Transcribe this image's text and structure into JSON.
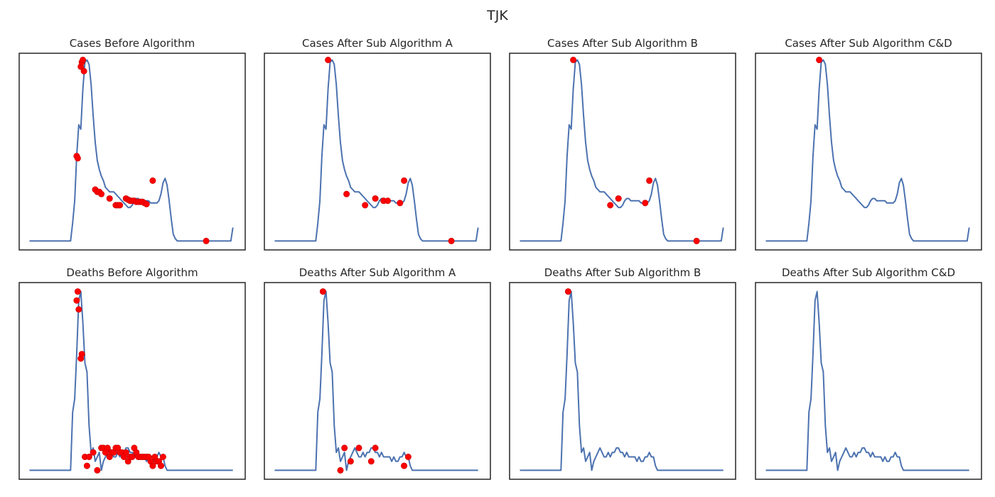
{
  "figure": {
    "suptitle": "TJK",
    "colors": {
      "line": "#4c72b0",
      "marker": "#ff0000",
      "frame": "#262626"
    }
  },
  "chart_data": [
    {
      "type": "line",
      "title": "Cases Before Algorithm",
      "xlabel": "",
      "ylabel": "",
      "xlim": [
        -5,
        105
      ],
      "ylim": [
        -4,
        84
      ],
      "grid": false,
      "legend": "none",
      "series": [
        {
          "values": [
            0,
            0,
            0,
            0,
            0,
            0,
            0,
            0,
            0,
            0,
            0,
            0,
            0,
            0,
            0,
            0,
            0,
            0,
            0,
            0,
            0,
            8,
            18,
            38,
            52,
            50,
            68,
            80,
            81,
            79,
            70,
            56,
            44,
            36,
            32,
            29,
            27,
            24,
            23,
            22,
            22,
            22,
            21,
            20,
            19,
            18,
            17,
            16,
            15,
            15,
            16,
            18,
            19,
            19,
            18,
            18,
            18,
            18,
            18,
            17,
            17,
            17,
            17,
            18,
            21,
            26,
            28,
            25,
            18,
            10,
            3,
            1,
            0,
            0,
            0,
            0,
            0,
            0,
            0,
            0,
            0,
            0,
            0,
            0,
            0,
            0,
            0,
            0,
            0,
            0,
            0,
            0,
            0,
            0,
            0,
            0,
            0,
            0,
            0,
            6
          ]
        }
      ],
      "highlight_points": [
        [
          23,
          38
        ],
        [
          23.5,
          37
        ],
        [
          25,
          78
        ],
        [
          25.5,
          80
        ],
        [
          26,
          81
        ],
        [
          26.5,
          76
        ],
        [
          32,
          23
        ],
        [
          33,
          22
        ],
        [
          34,
          22
        ],
        [
          35,
          21
        ],
        [
          39,
          19
        ],
        [
          42,
          16
        ],
        [
          43,
          16
        ],
        [
          44,
          16
        ],
        [
          47,
          19
        ],
        [
          48,
          18.5
        ],
        [
          49,
          18
        ],
        [
          50,
          18
        ],
        [
          51,
          18
        ],
        [
          52,
          17.5
        ],
        [
          53,
          17.5
        ],
        [
          54,
          17.5
        ],
        [
          55,
          17.5
        ],
        [
          56,
          17
        ],
        [
          57,
          16.5
        ],
        [
          60,
          27
        ],
        [
          86,
          0
        ]
      ]
    },
    {
      "type": "line",
      "title": "Cases After Sub Algorithm A",
      "xlabel": "",
      "ylabel": "",
      "xlim": [
        -5,
        105
      ],
      "ylim": [
        -4,
        84
      ],
      "grid": false,
      "legend": "none",
      "series": [
        {
          "values": [
            0,
            0,
            0,
            0,
            0,
            0,
            0,
            0,
            0,
            0,
            0,
            0,
            0,
            0,
            0,
            0,
            0,
            0,
            0,
            0,
            0,
            8,
            18,
            38,
            52,
            50,
            68,
            80,
            81,
            79,
            70,
            56,
            44,
            36,
            32,
            29,
            27,
            24,
            23,
            22,
            22,
            22,
            21,
            20,
            19,
            18,
            17,
            16,
            15,
            15,
            16,
            18,
            19,
            19,
            18,
            18,
            18,
            18,
            18,
            17,
            17,
            17,
            17,
            18,
            21,
            26,
            28,
            25,
            18,
            10,
            3,
            1,
            0,
            0,
            0,
            0,
            0,
            0,
            0,
            0,
            0,
            0,
            0,
            0,
            0,
            0,
            0,
            0,
            0,
            0,
            0,
            0,
            0,
            0,
            0,
            0,
            0,
            0,
            0,
            6
          ]
        }
      ],
      "highlight_points": [
        [
          26,
          81
        ],
        [
          35,
          21
        ],
        [
          44,
          16
        ],
        [
          49,
          19
        ],
        [
          53,
          18
        ],
        [
          55,
          18
        ],
        [
          61,
          17
        ],
        [
          63,
          27
        ],
        [
          86,
          0
        ]
      ]
    },
    {
      "type": "line",
      "title": "Cases After Sub Algorithm B",
      "xlabel": "",
      "ylabel": "",
      "xlim": [
        -5,
        105
      ],
      "ylim": [
        -4,
        84
      ],
      "grid": false,
      "legend": "none",
      "series": [
        {
          "values": [
            0,
            0,
            0,
            0,
            0,
            0,
            0,
            0,
            0,
            0,
            0,
            0,
            0,
            0,
            0,
            0,
            0,
            0,
            0,
            0,
            0,
            8,
            18,
            38,
            52,
            50,
            68,
            80,
            81,
            79,
            70,
            56,
            44,
            36,
            32,
            29,
            27,
            24,
            23,
            22,
            22,
            22,
            21,
            20,
            19,
            18,
            17,
            16,
            15,
            15,
            16,
            18,
            19,
            19,
            18,
            18,
            18,
            18,
            18,
            17,
            17,
            17,
            17,
            18,
            21,
            26,
            28,
            25,
            18,
            10,
            3,
            1,
            0,
            0,
            0,
            0,
            0,
            0,
            0,
            0,
            0,
            0,
            0,
            0,
            0,
            0,
            0,
            0,
            0,
            0,
            0,
            0,
            0,
            0,
            0,
            0,
            0,
            0,
            0,
            6
          ]
        }
      ],
      "highlight_points": [
        [
          26,
          81
        ],
        [
          44,
          16
        ],
        [
          48,
          19
        ],
        [
          61,
          17
        ],
        [
          63,
          27
        ],
        [
          86,
          0
        ]
      ]
    },
    {
      "type": "line",
      "title": "Cases After Sub Algorithm C&D",
      "xlabel": "",
      "ylabel": "",
      "xlim": [
        -5,
        105
      ],
      "ylim": [
        -4,
        84
      ],
      "grid": false,
      "legend": "none",
      "series": [
        {
          "values": [
            0,
            0,
            0,
            0,
            0,
            0,
            0,
            0,
            0,
            0,
            0,
            0,
            0,
            0,
            0,
            0,
            0,
            0,
            0,
            0,
            0,
            8,
            18,
            38,
            52,
            50,
            68,
            80,
            81,
            79,
            70,
            56,
            44,
            36,
            32,
            29,
            27,
            24,
            23,
            22,
            22,
            22,
            21,
            20,
            19,
            18,
            17,
            16,
            15,
            15,
            16,
            18,
            19,
            19,
            18,
            18,
            18,
            18,
            18,
            17,
            17,
            17,
            17,
            18,
            21,
            26,
            28,
            25,
            18,
            10,
            3,
            1,
            0,
            0,
            0,
            0,
            0,
            0,
            0,
            0,
            0,
            0,
            0,
            0,
            0,
            0,
            0,
            0,
            0,
            0,
            0,
            0,
            0,
            0,
            0,
            0,
            0,
            0,
            0,
            6
          ]
        }
      ],
      "highlight_points": [
        [
          26,
          81
        ]
      ]
    },
    {
      "type": "line",
      "title": "Deaths Before Algorithm",
      "xlabel": "",
      "ylabel": "",
      "xlim": [
        -5,
        105
      ],
      "ylim": [
        -2,
        42
      ],
      "grid": false,
      "legend": "none",
      "series": [
        {
          "values": [
            0,
            0,
            0,
            0,
            0,
            0,
            0,
            0,
            0,
            0,
            0,
            0,
            0,
            0,
            0,
            0,
            0,
            0,
            0,
            0,
            0,
            13,
            16,
            26,
            38,
            40,
            33,
            24,
            22,
            10,
            4,
            5,
            2,
            3,
            4,
            0,
            2,
            3,
            4,
            5,
            4,
            3,
            3,
            4,
            3,
            4,
            4,
            5,
            5,
            4,
            4,
            3,
            4,
            3,
            3,
            3,
            3,
            2,
            3,
            2,
            2,
            3,
            3,
            4,
            3,
            3,
            1,
            0,
            0,
            0,
            0,
            0,
            0,
            0,
            0,
            0,
            0,
            0,
            0,
            0,
            0,
            0,
            0,
            0,
            0,
            0,
            0,
            0,
            0,
            0,
            0,
            0,
            0,
            0,
            0,
            0,
            0,
            0,
            0,
            0
          ]
        }
      ],
      "highlight_points": [
        [
          23,
          38
        ],
        [
          23.5,
          40
        ],
        [
          24,
          36
        ],
        [
          25,
          25
        ],
        [
          25.5,
          26
        ],
        [
          27,
          3
        ],
        [
          28,
          1
        ],
        [
          29,
          3
        ],
        [
          31,
          4
        ],
        [
          33,
          0
        ],
        [
          35,
          5
        ],
        [
          36,
          5
        ],
        [
          37,
          4
        ],
        [
          38,
          5
        ],
        [
          39,
          3
        ],
        [
          40,
          4
        ],
        [
          41,
          4
        ],
        [
          42,
          5
        ],
        [
          43,
          5
        ],
        [
          44,
          4
        ],
        [
          45,
          4
        ],
        [
          46,
          3
        ],
        [
          47,
          4
        ],
        [
          48,
          2
        ],
        [
          49,
          3
        ],
        [
          50,
          3
        ],
        [
          51,
          5
        ],
        [
          52,
          4
        ],
        [
          53,
          3
        ],
        [
          54,
          3
        ],
        [
          55,
          3
        ],
        [
          56,
          3
        ],
        [
          57,
          3
        ],
        [
          58,
          3
        ],
        [
          59,
          2
        ],
        [
          60,
          1
        ],
        [
          61,
          3
        ],
        [
          62,
          2
        ],
        [
          63,
          2
        ],
        [
          64,
          1
        ],
        [
          65,
          3
        ]
      ]
    },
    {
      "type": "line",
      "title": "Deaths After Sub Algorithm A",
      "xlabel": "",
      "ylabel": "",
      "xlim": [
        -5,
        105
      ],
      "ylim": [
        -2,
        42
      ],
      "grid": false,
      "legend": "none",
      "series": [
        {
          "values": [
            0,
            0,
            0,
            0,
            0,
            0,
            0,
            0,
            0,
            0,
            0,
            0,
            0,
            0,
            0,
            0,
            0,
            0,
            0,
            0,
            0,
            13,
            16,
            26,
            38,
            40,
            33,
            24,
            22,
            10,
            4,
            5,
            2,
            3,
            4,
            0,
            2,
            3,
            4,
            5,
            4,
            3,
            3,
            4,
            3,
            4,
            4,
            5,
            5,
            4,
            4,
            3,
            4,
            3,
            3,
            3,
            3,
            2,
            3,
            2,
            2,
            3,
            3,
            4,
            3,
            3,
            1,
            0,
            0,
            0,
            0,
            0,
            0,
            0,
            0,
            0,
            0,
            0,
            0,
            0,
            0,
            0,
            0,
            0,
            0,
            0,
            0,
            0,
            0,
            0,
            0,
            0,
            0,
            0,
            0,
            0,
            0,
            0,
            0,
            0
          ]
        }
      ],
      "highlight_points": [
        [
          23.5,
          40
        ],
        [
          32,
          0
        ],
        [
          34,
          5
        ],
        [
          37,
          2
        ],
        [
          41,
          5
        ],
        [
          47,
          2
        ],
        [
          49,
          5
        ],
        [
          63,
          1
        ],
        [
          65,
          3
        ]
      ]
    },
    {
      "type": "line",
      "title": "Deaths After Sub Algorithm B",
      "xlabel": "",
      "ylabel": "",
      "xlim": [
        -5,
        105
      ],
      "ylim": [
        -2,
        42
      ],
      "grid": false,
      "legend": "none",
      "series": [
        {
          "values": [
            0,
            0,
            0,
            0,
            0,
            0,
            0,
            0,
            0,
            0,
            0,
            0,
            0,
            0,
            0,
            0,
            0,
            0,
            0,
            0,
            0,
            13,
            16,
            26,
            38,
            40,
            33,
            24,
            22,
            10,
            4,
            5,
            2,
            3,
            4,
            0,
            2,
            3,
            4,
            5,
            4,
            3,
            3,
            4,
            3,
            4,
            4,
            5,
            5,
            4,
            4,
            3,
            4,
            3,
            3,
            3,
            3,
            2,
            3,
            2,
            2,
            3,
            3,
            4,
            3,
            3,
            1,
            0,
            0,
            0,
            0,
            0,
            0,
            0,
            0,
            0,
            0,
            0,
            0,
            0,
            0,
            0,
            0,
            0,
            0,
            0,
            0,
            0,
            0,
            0,
            0,
            0,
            0,
            0,
            0,
            0,
            0,
            0,
            0,
            0
          ]
        }
      ],
      "highlight_points": [
        [
          23.5,
          40
        ]
      ]
    },
    {
      "type": "line",
      "title": "Deaths After Sub Algorithm C&D",
      "xlabel": "",
      "ylabel": "",
      "xlim": [
        -5,
        105
      ],
      "ylim": [
        -2,
        42
      ],
      "grid": false,
      "legend": "none",
      "series": [
        {
          "values": [
            0,
            0,
            0,
            0,
            0,
            0,
            0,
            0,
            0,
            0,
            0,
            0,
            0,
            0,
            0,
            0,
            0,
            0,
            0,
            0,
            0,
            13,
            16,
            26,
            38,
            40,
            33,
            24,
            22,
            10,
            4,
            5,
            2,
            3,
            4,
            0,
            2,
            3,
            4,
            5,
            4,
            3,
            3,
            4,
            3,
            4,
            4,
            5,
            5,
            4,
            4,
            3,
            4,
            3,
            3,
            3,
            3,
            2,
            3,
            2,
            2,
            3,
            3,
            4,
            3,
            3,
            1,
            0,
            0,
            0,
            0,
            0,
            0,
            0,
            0,
            0,
            0,
            0,
            0,
            0,
            0,
            0,
            0,
            0,
            0,
            0,
            0,
            0,
            0,
            0,
            0,
            0,
            0,
            0,
            0,
            0,
            0,
            0,
            0,
            0
          ]
        }
      ],
      "highlight_points": []
    }
  ]
}
